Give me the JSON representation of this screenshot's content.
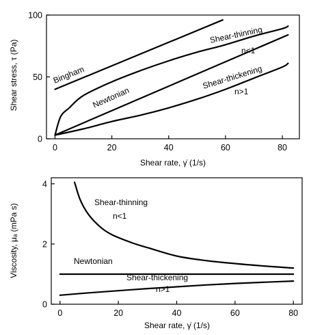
{
  "chart_data": [
    {
      "type": "line",
      "title": "",
      "xlabel": "Shear rate, γ̇ (1/s)",
      "ylabel": "Shear stress, τ (Pa)",
      "xlim": [
        -3,
        86
      ],
      "ylim": [
        0,
        100
      ],
      "xticks": [
        0,
        20,
        40,
        60,
        80
      ],
      "yticks": [
        0,
        50,
        100
      ],
      "grid": false,
      "legend": "none",
      "series": [
        {
          "name": "Bingham",
          "x": [
            0,
            59
          ],
          "y": [
            40,
            96
          ]
        },
        {
          "name": "Newtonian",
          "x": [
            0,
            82
          ],
          "y": [
            3,
            84
          ]
        },
        {
          "name": "Shear-thinning",
          "x": [
            0,
            2,
            5,
            10,
            20,
            30,
            40,
            50,
            60,
            70,
            80,
            82
          ],
          "y": [
            3,
            18,
            25,
            35,
            46,
            55,
            63,
            70,
            76,
            83,
            89,
            91
          ]
        },
        {
          "name": "Shear-thickening",
          "x": [
            0,
            10,
            20,
            30,
            40,
            50,
            60,
            70,
            80,
            82
          ],
          "y": [
            3,
            8,
            14,
            19,
            25,
            32,
            40,
            49,
            58,
            61
          ]
        }
      ],
      "annotations": [
        {
          "text": "Bingham"
        },
        {
          "text": "Shear-thinning"
        },
        {
          "text": "n<1"
        },
        {
          "text": "Newtonian"
        },
        {
          "text": "Shear-thickening"
        },
        {
          "text": "n>1"
        }
      ]
    },
    {
      "type": "line",
      "title": "",
      "xlabel": "Shear rate, γ̇ (1/s)",
      "ylabel": "Viscosity, μₐ (mPa s)",
      "xlim": [
        -3,
        83
      ],
      "ylim": [
        0,
        4.2
      ],
      "xticks": [
        0,
        20,
        40,
        60,
        80
      ],
      "yticks": [
        0,
        2,
        4
      ],
      "grid": false,
      "legend": "none",
      "series": [
        {
          "name": "Shear-thinning",
          "x": [
            5,
            7,
            10,
            14,
            18,
            25,
            30,
            40,
            50,
            60,
            70,
            80
          ],
          "y": [
            4.05,
            3.45,
            2.95,
            2.55,
            2.3,
            2.03,
            1.88,
            1.6,
            1.45,
            1.35,
            1.27,
            1.2
          ]
        },
        {
          "name": "Newtonian",
          "x": [
            0,
            80
          ],
          "y": [
            1.0,
            1.0
          ]
        },
        {
          "name": "Shear-thickening",
          "x": [
            0,
            10,
            20,
            30,
            40,
            50,
            60,
            70,
            80
          ],
          "y": [
            0.3,
            0.38,
            0.45,
            0.52,
            0.58,
            0.64,
            0.69,
            0.73,
            0.77
          ]
        }
      ],
      "annotations": [
        {
          "text": "Shear-thinning"
        },
        {
          "text": "n<1"
        },
        {
          "text": "Newtonian"
        },
        {
          "text": "Shear-thickening"
        },
        {
          "text": "n>1"
        }
      ]
    }
  ]
}
